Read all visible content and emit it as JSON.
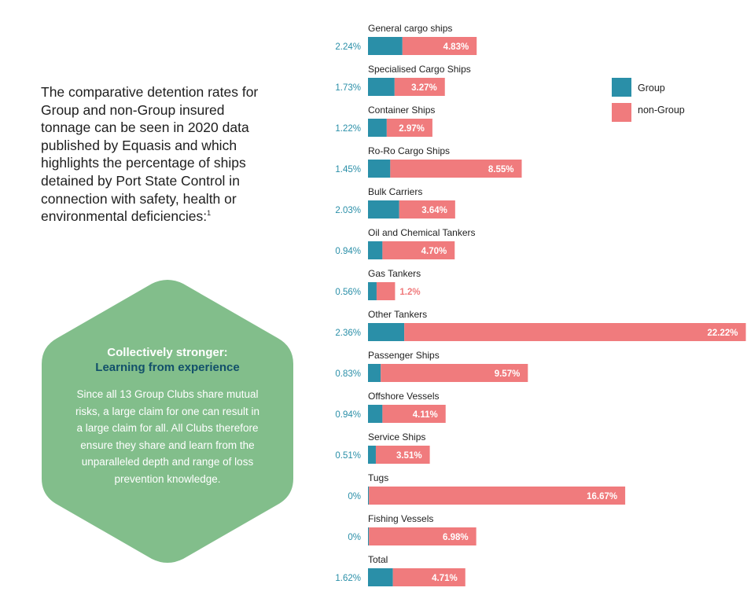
{
  "intro": {
    "text": "The comparative detention rates for Group and non-Group insured tonnage can be seen in 2020 data published by Equasis and which highlights the percentage of ships detained by Port State Control in connection with safety, health or environmental deficiencies:",
    "footnote": "1"
  },
  "callout": {
    "title_line1": "Collectively stronger:",
    "title_line2": "Learning from experience",
    "body": "Since all 13 Group Clubs share mutual risks, a large claim for one can result in a large claim for all. All Clubs therefore ensure they share and learn from the unparalleled depth and range of loss prevention knowledge."
  },
  "colors": {
    "group": "#2a8fa8",
    "non_group": "#f07b7d",
    "group_label_text": "#2a8fa8",
    "hexagon": "#82be8b"
  },
  "chart_data": {
    "type": "bar",
    "orientation": "horizontal",
    "stacked": true,
    "legend_position": "top-right",
    "categories": [
      "General cargo ships",
      "Specialised Cargo Ships",
      "Container Ships",
      "Ro-Ro Cargo Ships",
      "Bulk Carriers",
      "Oil and Chemical Tankers",
      "Gas Tankers",
      "Other Tankers",
      "Passenger Ships",
      "Offshore Vessels",
      "Service Ships",
      "Tugs",
      "Fishing Vessels",
      "Total"
    ],
    "series": [
      {
        "name": "Group",
        "values": [
          2.24,
          1.73,
          1.22,
          1.45,
          2.03,
          0.94,
          0.56,
          2.36,
          0.83,
          0.94,
          0.51,
          0,
          0,
          1.62
        ],
        "labels": [
          "2.24%",
          "1.73%",
          "1.22%",
          "1.45%",
          "2.03%",
          "0.94%",
          "0.56%",
          "2.36%",
          "0.83%",
          "0.94%",
          "0.51%",
          "0%",
          "0%",
          "1.62%"
        ]
      },
      {
        "name": "non-Group",
        "values": [
          4.83,
          3.27,
          2.97,
          8.55,
          3.64,
          4.7,
          1.2,
          22.22,
          9.57,
          4.11,
          3.51,
          16.67,
          6.98,
          4.71
        ],
        "labels": [
          "4.83%",
          "3.27%",
          "2.97%",
          "8.55%",
          "3.64%",
          "4.70%",
          "1.2%",
          "22.22%",
          "9.57%",
          "4.11%",
          "3.51%",
          "16.67%",
          "6.98%",
          "4.71%"
        ]
      }
    ]
  }
}
